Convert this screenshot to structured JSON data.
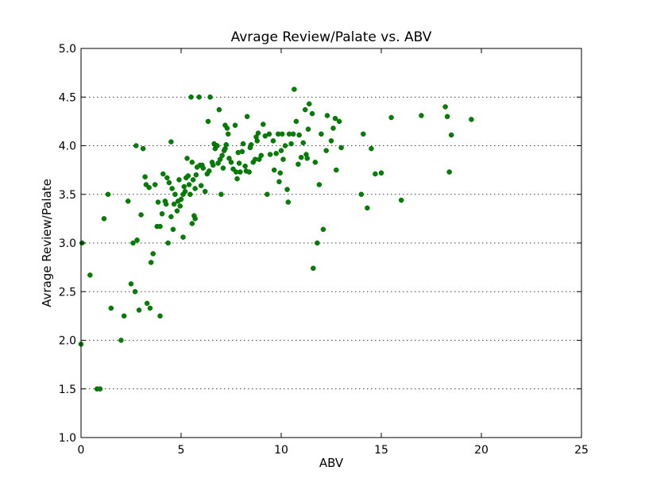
{
  "chart_data": {
    "type": "scatter",
    "title": "Avrage Review/Palate vs. ABV",
    "xlabel": "ABV",
    "ylabel": "Avrage Review/Palate",
    "xlim": [
      0,
      25
    ],
    "ylim": [
      1.0,
      5.0
    ],
    "xticks": [
      "0",
      "5",
      "10",
      "15",
      "20",
      "25"
    ],
    "yticks": [
      "1.0",
      "1.5",
      "2.0",
      "2.5",
      "3.0",
      "3.5",
      "4.0",
      "4.5",
      "5.0"
    ],
    "grid": "horizontal dotted",
    "marker_color": "#008000",
    "points": [
      [
        0.0,
        1.96
      ],
      [
        0.05,
        3.0
      ],
      [
        0.45,
        2.67
      ],
      [
        0.8,
        1.5
      ],
      [
        0.95,
        1.5
      ],
      [
        1.15,
        3.25
      ],
      [
        1.35,
        3.5
      ],
      [
        1.5,
        2.33
      ],
      [
        2.0,
        2.0
      ],
      [
        2.15,
        2.25
      ],
      [
        2.35,
        3.43
      ],
      [
        2.5,
        2.58
      ],
      [
        2.6,
        3.0
      ],
      [
        2.7,
        2.5
      ],
      [
        2.75,
        4.0
      ],
      [
        2.8,
        3.03
      ],
      [
        2.9,
        2.31
      ],
      [
        3.0,
        3.29
      ],
      [
        3.1,
        3.97
      ],
      [
        3.2,
        3.68
      ],
      [
        3.25,
        3.6
      ],
      [
        3.3,
        2.38
      ],
      [
        3.4,
        3.57
      ],
      [
        3.45,
        2.33
      ],
      [
        3.5,
        2.8
      ],
      [
        3.6,
        2.89
      ],
      [
        3.7,
        3.6
      ],
      [
        3.8,
        3.17
      ],
      [
        3.85,
        3.42
      ],
      [
        3.95,
        3.17
      ],
      [
        3.95,
        2.25
      ],
      [
        4.05,
        3.3
      ],
      [
        4.1,
        3.71
      ],
      [
        4.2,
        3.43
      ],
      [
        4.25,
        3.4
      ],
      [
        4.3,
        3.67
      ],
      [
        4.35,
        3.0
      ],
      [
        4.4,
        3.62
      ],
      [
        4.5,
        3.27
      ],
      [
        4.5,
        4.04
      ],
      [
        4.55,
        3.56
      ],
      [
        4.6,
        3.14
      ],
      [
        4.65,
        3.4
      ],
      [
        4.7,
        3.5
      ],
      [
        4.8,
        3.33
      ],
      [
        4.85,
        3.43
      ],
      [
        4.9,
        3.65
      ],
      [
        4.95,
        3.38
      ],
      [
        5.0,
        3.45
      ],
      [
        5.1,
        3.5
      ],
      [
        5.1,
        3.06
      ],
      [
        5.15,
        3.58
      ],
      [
        5.2,
        3.53
      ],
      [
        5.25,
        3.67
      ],
      [
        5.3,
        3.87
      ],
      [
        5.35,
        3.69
      ],
      [
        5.4,
        3.6
      ],
      [
        5.45,
        3.5
      ],
      [
        5.5,
        4.5
      ],
      [
        5.55,
        3.83
      ],
      [
        5.55,
        3.2
      ],
      [
        5.6,
        3.65
      ],
      [
        5.65,
        3.28
      ],
      [
        5.7,
        3.25
      ],
      [
        5.7,
        3.56
      ],
      [
        5.75,
        3.7
      ],
      [
        5.8,
        3.78
      ],
      [
        5.9,
        4.5
      ],
      [
        5.95,
        3.8
      ],
      [
        6.0,
        3.59
      ],
      [
        6.05,
        3.8
      ],
      [
        6.1,
        3.77
      ],
      [
        6.2,
        3.53
      ],
      [
        6.3,
        3.71
      ],
      [
        6.35,
        4.25
      ],
      [
        6.4,
        3.74
      ],
      [
        6.45,
        4.5
      ],
      [
        6.55,
        3.83
      ],
      [
        6.6,
        3.8
      ],
      [
        6.65,
        4.02
      ],
      [
        6.7,
        3.97
      ],
      [
        6.75,
        4.0
      ],
      [
        6.8,
        4.0
      ],
      [
        6.85,
        3.82
      ],
      [
        6.9,
        4.37
      ],
      [
        6.95,
        3.86
      ],
      [
        7.0,
        3.5
      ],
      [
        7.05,
        3.9
      ],
      [
        7.1,
        3.77
      ],
      [
        7.15,
        3.95
      ],
      [
        7.2,
        4.21
      ],
      [
        7.2,
        3.97
      ],
      [
        7.25,
        4.01
      ],
      [
        7.3,
        4.18
      ],
      [
        7.35,
        4.12
      ],
      [
        7.4,
        3.87
      ],
      [
        7.5,
        3.83
      ],
      [
        7.6,
        3.76
      ],
      [
        7.7,
        4.21
      ],
      [
        7.75,
        3.73
      ],
      [
        7.8,
        3.66
      ],
      [
        7.85,
        3.93
      ],
      [
        7.9,
        3.82
      ],
      [
        7.95,
        3.73
      ],
      [
        8.05,
        3.94
      ],
      [
        8.1,
        4.02
      ],
      [
        8.2,
        3.79
      ],
      [
        8.25,
        3.74
      ],
      [
        8.3,
        4.3
      ],
      [
        8.4,
        3.73
      ],
      [
        8.45,
        3.98
      ],
      [
        8.5,
        4.01
      ],
      [
        8.6,
        3.83
      ],
      [
        8.7,
        3.86
      ],
      [
        8.75,
        4.09
      ],
      [
        8.8,
        4.05
      ],
      [
        8.85,
        4.13
      ],
      [
        8.9,
        3.86
      ],
      [
        9.0,
        3.9
      ],
      [
        9.1,
        4.22
      ],
      [
        9.2,
        4.1
      ],
      [
        9.3,
        3.5
      ],
      [
        9.4,
        4.12
      ],
      [
        9.45,
        3.91
      ],
      [
        9.6,
        4.05
      ],
      [
        9.65,
        3.75
      ],
      [
        9.75,
        3.92
      ],
      [
        9.85,
        4.12
      ],
      [
        9.9,
        3.63
      ],
      [
        9.95,
        3.72
      ],
      [
        10.0,
        3.95
      ],
      [
        10.05,
        4.12
      ],
      [
        10.1,
        3.86
      ],
      [
        10.2,
        4.0
      ],
      [
        10.3,
        3.55
      ],
      [
        10.35,
        3.42
      ],
      [
        10.4,
        4.12
      ],
      [
        10.5,
        4.02
      ],
      [
        10.6,
        4.12
      ],
      [
        10.65,
        4.58
      ],
      [
        10.75,
        4.25
      ],
      [
        10.85,
        3.81
      ],
      [
        10.9,
        4.11
      ],
      [
        11.0,
        3.88
      ],
      [
        11.1,
        4.03
      ],
      [
        11.2,
        4.37
      ],
      [
        11.25,
        3.91
      ],
      [
        11.3,
        3.87
      ],
      [
        11.35,
        4.17
      ],
      [
        11.4,
        4.43
      ],
      [
        11.55,
        4.33
      ],
      [
        11.6,
        2.74
      ],
      [
        11.7,
        3.83
      ],
      [
        11.8,
        3.0
      ],
      [
        11.9,
        3.6
      ],
      [
        12.0,
        4.12
      ],
      [
        12.1,
        3.14
      ],
      [
        12.25,
        3.95
      ],
      [
        12.3,
        4.31
      ],
      [
        12.5,
        4.05
      ],
      [
        12.6,
        4.18
      ],
      [
        12.7,
        4.28
      ],
      [
        12.75,
        3.75
      ],
      [
        12.9,
        4.25
      ],
      [
        13.0,
        3.98
      ],
      [
        14.0,
        3.5
      ],
      [
        14.1,
        4.12
      ],
      [
        14.3,
        3.36
      ],
      [
        14.5,
        3.97
      ],
      [
        14.7,
        3.71
      ],
      [
        15.0,
        3.72
      ],
      [
        15.5,
        4.29
      ],
      [
        16.0,
        3.44
      ],
      [
        17.0,
        4.31
      ],
      [
        18.2,
        4.4
      ],
      [
        18.3,
        4.3
      ],
      [
        18.4,
        3.73
      ],
      [
        18.5,
        4.11
      ],
      [
        19.5,
        4.27
      ]
    ]
  }
}
